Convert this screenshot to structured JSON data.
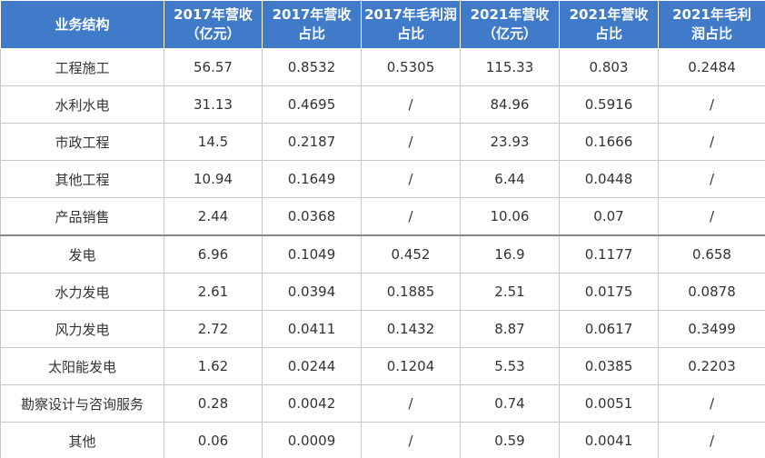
{
  "table": {
    "header": [
      "业务结构",
      "2017年营收\n（亿元）",
      "2017年营收\n占比",
      "2017年毛利润\n占比",
      "2021年营收\n（亿元）",
      "2021年营收\n占比",
      "2021年毛利\n润占比"
    ],
    "rows": [
      [
        "工程施工",
        "56.57",
        "0.8532",
        "0.5305",
        "115.33",
        "0.803",
        "0.2484"
      ],
      [
        "水利水电",
        "31.13",
        "0.4695",
        "/",
        "84.96",
        "0.5916",
        "/"
      ],
      [
        "市政工程",
        "14.5",
        "0.2187",
        "/",
        "23.93",
        "0.1666",
        "/"
      ],
      [
        "其他工程",
        "10.94",
        "0.1649",
        "/",
        "6.44",
        "0.0448",
        "/"
      ],
      [
        "产品销售",
        "2.44",
        "0.0368",
        "/",
        "10.06",
        "0.07",
        "/"
      ],
      [
        "发电",
        "6.96",
        "0.1049",
        "0.452",
        "16.9",
        "0.1177",
        "0.658"
      ],
      [
        "水力发电",
        "2.61",
        "0.0394",
        "0.1885",
        "2.51",
        "0.0175",
        "0.0878"
      ],
      [
        "风力发电",
        "2.72",
        "0.0411",
        "0.1432",
        "8.87",
        "0.0617",
        "0.3499"
      ],
      [
        "太阳能发电",
        "1.62",
        "0.0244",
        "0.1204",
        "5.53",
        "0.0385",
        "0.2203"
      ],
      [
        "勘察设计与咨询服务",
        "0.28",
        "0.0042",
        "/",
        "0.74",
        "0.0051",
        "/"
      ],
      [
        "其他",
        "0.06",
        "0.0009",
        "/",
        "0.59",
        "0.0041",
        "/"
      ]
    ]
  }
}
